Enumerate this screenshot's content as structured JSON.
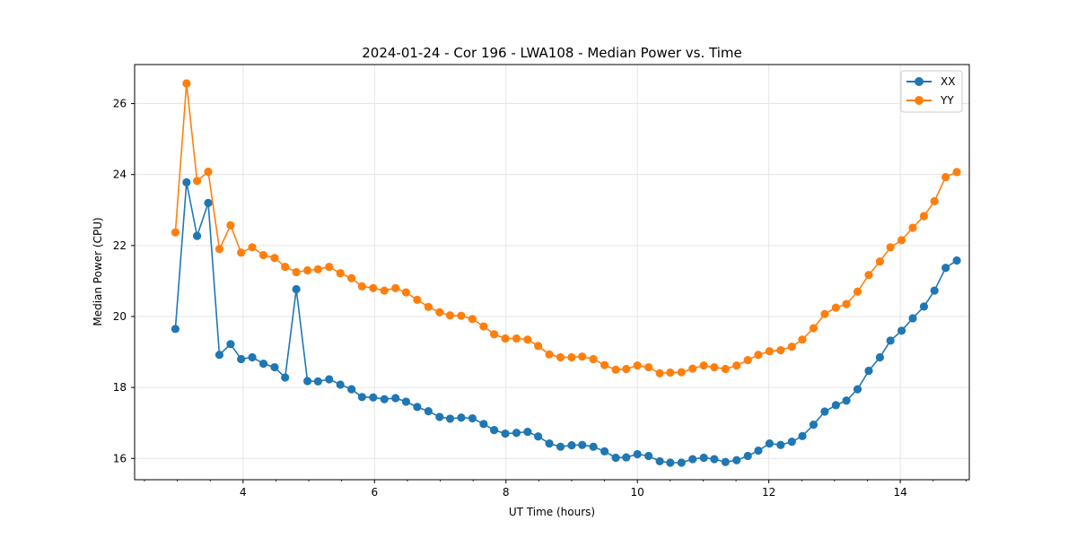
{
  "chart_data": {
    "type": "line",
    "title": "2024-01-24 - Cor 196 - LWA108 - Median Power vs. Time",
    "xlabel": "UT Time (hours)",
    "ylabel": "Median Power (CPU)",
    "xlim": [
      2.35,
      15.05
    ],
    "ylim": [
      15.4,
      27.1
    ],
    "xticks": [
      4,
      6,
      8,
      10,
      12,
      14
    ],
    "xtick_labels": [
      "4",
      "6",
      "8",
      "10",
      "12",
      "14"
    ],
    "x_minor_step": 0.5,
    "yticks": [
      16,
      18,
      20,
      22,
      24,
      26
    ],
    "ytick_labels": [
      "16",
      "18",
      "20",
      "22",
      "24",
      "26"
    ],
    "grid": true,
    "legend_position": "top-right",
    "x": [
      2.97,
      3.14,
      3.3,
      3.47,
      3.64,
      3.81,
      3.97,
      4.14,
      4.31,
      4.48,
      4.64,
      4.81,
      4.98,
      5.14,
      5.31,
      5.48,
      5.65,
      5.81,
      5.98,
      6.15,
      6.32,
      6.48,
      6.65,
      6.82,
      6.99,
      7.15,
      7.32,
      7.49,
      7.66,
      7.82,
      7.99,
      8.16,
      8.33,
      8.49,
      8.66,
      8.83,
      9.0,
      9.16,
      9.33,
      9.5,
      9.67,
      9.83,
      10.0,
      10.17,
      10.34,
      10.5,
      10.67,
      10.84,
      11.01,
      11.17,
      11.34,
      11.51,
      11.68,
      11.84,
      12.01,
      12.18,
      12.35,
      12.51,
      12.68,
      12.85,
      13.02,
      13.18,
      13.35,
      13.52,
      13.69,
      13.85,
      14.02,
      14.19,
      14.36,
      14.52,
      14.69,
      14.86
    ],
    "series": [
      {
        "name": "XX",
        "color": "#1f77b4",
        "values": [
          19.65,
          23.78,
          22.27,
          23.2,
          18.92,
          19.22,
          18.8,
          18.85,
          18.67,
          18.57,
          18.28,
          20.77,
          18.18,
          18.17,
          18.23,
          18.08,
          17.95,
          17.73,
          17.72,
          17.67,
          17.7,
          17.6,
          17.45,
          17.33,
          17.17,
          17.12,
          17.15,
          17.13,
          16.97,
          16.8,
          16.7,
          16.72,
          16.75,
          16.62,
          16.42,
          16.33,
          16.37,
          16.38,
          16.33,
          16.2,
          16.02,
          16.03,
          16.12,
          16.07,
          15.92,
          15.88,
          15.88,
          15.98,
          16.02,
          15.98,
          15.9,
          15.95,
          16.07,
          16.22,
          16.42,
          16.38,
          16.47,
          16.63,
          16.95,
          17.32,
          17.5,
          17.63,
          17.95,
          18.47,
          18.85,
          19.32,
          19.6,
          19.95,
          20.28,
          20.73,
          21.37,
          21.58
        ]
      },
      {
        "name": "YY",
        "color": "#ff7f0e",
        "values": [
          22.37,
          26.57,
          23.82,
          24.08,
          21.9,
          22.57,
          21.8,
          21.95,
          21.73,
          21.65,
          21.4,
          21.25,
          21.3,
          21.33,
          21.4,
          21.22,
          21.08,
          20.85,
          20.8,
          20.73,
          20.8,
          20.68,
          20.47,
          20.27,
          20.12,
          20.03,
          20.02,
          19.93,
          19.72,
          19.5,
          19.38,
          19.38,
          19.35,
          19.17,
          18.93,
          18.85,
          18.85,
          18.87,
          18.8,
          18.63,
          18.5,
          18.52,
          18.62,
          18.57,
          18.4,
          18.42,
          18.43,
          18.53,
          18.62,
          18.57,
          18.52,
          18.62,
          18.77,
          18.92,
          19.02,
          19.05,
          19.15,
          19.35,
          19.67,
          20.07,
          20.25,
          20.35,
          20.7,
          21.17,
          21.55,
          21.95,
          22.15,
          22.5,
          22.83,
          23.25,
          23.93,
          24.07
        ]
      }
    ]
  }
}
